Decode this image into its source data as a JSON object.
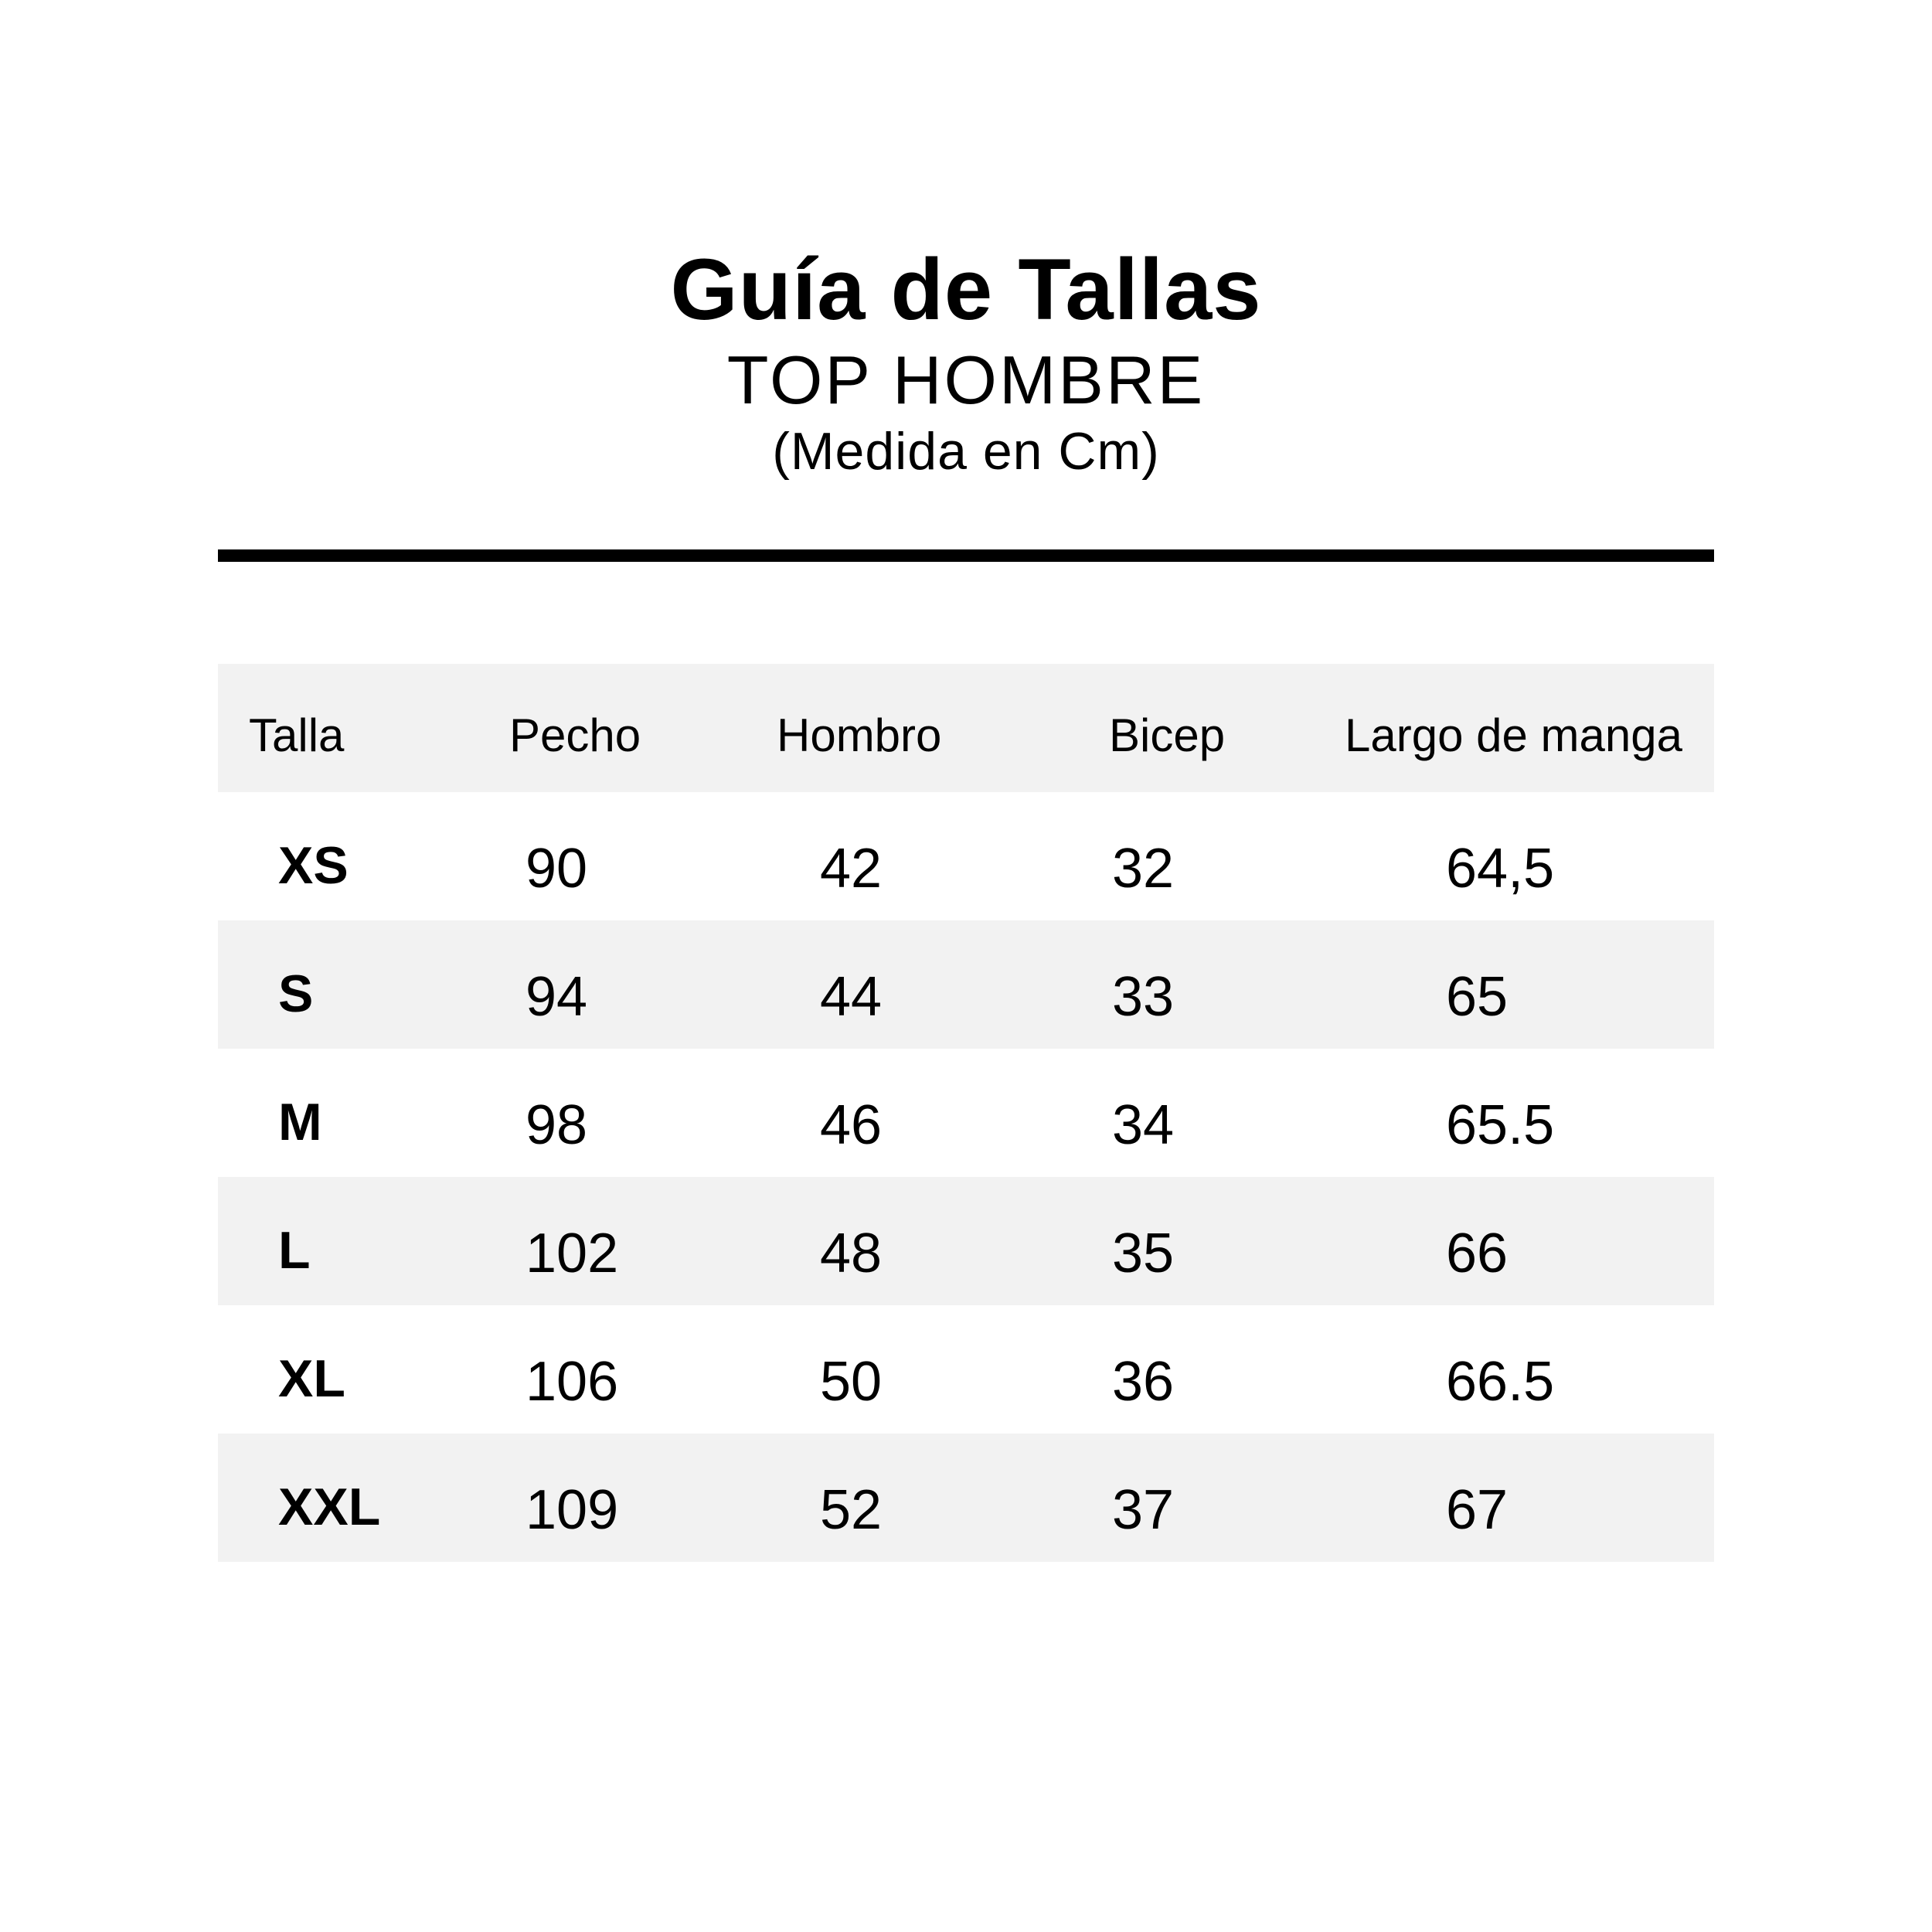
{
  "colors": {
    "background": "#ffffff",
    "text": "#000000",
    "row_alt_bg": "#f2f2f2",
    "divider": "#000000"
  },
  "chart_data": {
    "type": "table",
    "title": "Guía de Tallas",
    "subtitle": "TOP HOMBRE",
    "units_note": "(Medida en Cm)",
    "columns": [
      "Talla",
      "Pecho",
      "Hombro",
      "Bicep",
      "Largo de manga"
    ],
    "rows": [
      {
        "size": "XS",
        "values": [
          "90",
          "42",
          "32",
          "64,5"
        ]
      },
      {
        "size": "S",
        "values": [
          "94",
          "44",
          "33",
          "65"
        ]
      },
      {
        "size": "M",
        "values": [
          "98",
          "46",
          "34",
          "65.5"
        ]
      },
      {
        "size": "L",
        "values": [
          "102",
          "48",
          "35",
          "66"
        ]
      },
      {
        "size": "XL",
        "values": [
          "106",
          "50",
          "36",
          "66.5"
        ]
      },
      {
        "size": "XXL",
        "values": [
          "109",
          "52",
          "37",
          "67"
        ]
      }
    ],
    "layout": {
      "zebra_striping": true,
      "header_row_bg": "#f2f2f2",
      "alt_row_bg": "#f2f2f2",
      "grid_lines": false,
      "thick_rule_below_title": true
    }
  }
}
